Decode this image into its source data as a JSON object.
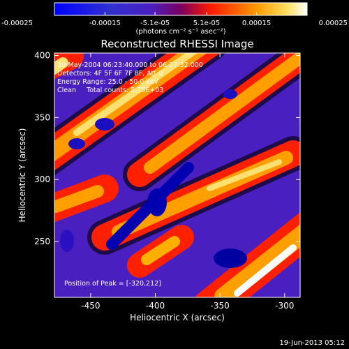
{
  "chart_data": {
    "type": "heatmap",
    "title": "Reconstructed RHESSI Image",
    "xlabel": "Heliocentric X (arcsec)",
    "ylabel": "Heliocentric Y (arcsec)",
    "xlim": [
      -478,
      -288
    ],
    "ylim": [
      205,
      402
    ],
    "x_ticks": [
      -450,
      -400,
      -350,
      -300
    ],
    "y_ticks": [
      250,
      300,
      350,
      400
    ],
    "x_tick_labels": [
      "-450",
      "-400",
      "-350",
      "-300"
    ],
    "y_tick_labels": [
      "250",
      "300",
      "350",
      "400"
    ],
    "colorbar": {
      "min": -0.00025,
      "max": 0.00025,
      "ticks": [
        -0.00025,
        -0.00015,
        -5.1e-05,
        5.1e-05,
        0.00015,
        0.00025
      ],
      "tick_labels": [
        "-0.00025",
        "-0.00015",
        "-5.1e-05",
        "5.1e-05",
        "0.00015",
        "0.00025"
      ],
      "unit_label": "(photons cm⁻² s⁻¹ asec⁻²)"
    },
    "annotations": {
      "time_range": "20-May-2004 06:23:40.000 to 06:27:32.000",
      "detectors": "Detectors: 4F 5F 6F 7F 8F, Att 0",
      "energy_range": "Energy Range: 25.0 - 50.0 keV",
      "clean_counts": "Clean     Total counts: 5.75E+03",
      "peak_position": "Position of Peak = [-320,212]"
    },
    "timestamp": "19-Jun-2013 05:12",
    "colormap": [
      "#000000",
      "#4a1fbf",
      "#0000a0",
      "#ff3000",
      "#ffb000",
      "#ffffff"
    ]
  }
}
